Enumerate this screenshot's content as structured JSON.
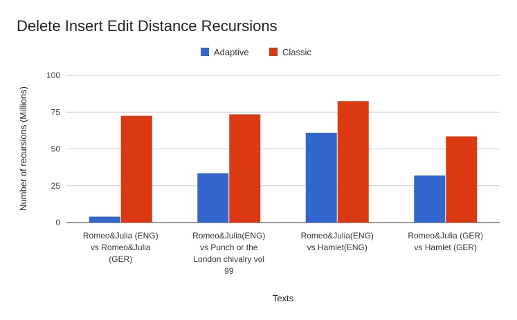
{
  "chart_data": {
    "type": "bar",
    "title": "Delete Insert Edit Distance Recursions",
    "xlabel": "Texts",
    "ylabel": "Number of recursions (Millions)",
    "ylim": [
      0,
      100
    ],
    "yticks": [
      "0",
      "25",
      "50",
      "75",
      "100"
    ],
    "legend_position": "top-center",
    "categories": [
      [
        "Romeo&Julia (ENG)",
        "vs Romeo&Julia",
        "(GER)"
      ],
      [
        "Romeo&Julia(ENG)",
        "vs Punch or the",
        "London chivalry vol",
        "99"
      ],
      [
        "Romeo&Julia(ENG)",
        "vs Hamlet(ENG)"
      ],
      [
        "Romeo&Julia (GER)",
        "vs Hamlet (GER)"
      ]
    ],
    "series": [
      {
        "name": "Adaptive",
        "color": "#3366cc",
        "values": [
          4,
          33.5,
          61,
          32
        ]
      },
      {
        "name": "Classic",
        "color": "#dc3912",
        "values": [
          72.5,
          73.5,
          82.5,
          58.5
        ]
      }
    ],
    "grid": true
  }
}
